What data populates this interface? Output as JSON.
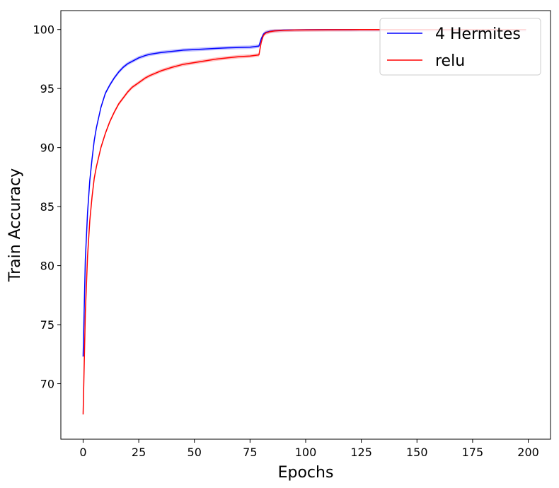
{
  "chart_data": {
    "type": "line",
    "xlabel": "Epochs",
    "ylabel": "Train Accuracy",
    "xlim": [
      -10,
      210
    ],
    "ylim": [
      65.3,
      101.6
    ],
    "xticks": [
      0,
      25,
      50,
      75,
      100,
      125,
      150,
      175,
      200
    ],
    "yticks": [
      70,
      75,
      80,
      85,
      90,
      95,
      100
    ],
    "xtick_labels": [
      "0",
      "25",
      "50",
      "75",
      "100",
      "125",
      "150",
      "175",
      "200"
    ],
    "ytick_labels": [
      "70",
      "75",
      "80",
      "85",
      "90",
      "95",
      "100"
    ],
    "legend_position": "top-right",
    "grid": false,
    "series": [
      {
        "name": "4 Hermites",
        "color": "#0000ff",
        "band_color": "#9999ff",
        "x": [
          0,
          1,
          2,
          3,
          4,
          5,
          6,
          8,
          10,
          12,
          14,
          16,
          18,
          20,
          22,
          25,
          28,
          30,
          35,
          40,
          45,
          50,
          55,
          60,
          65,
          70,
          75,
          79,
          80,
          81,
          82,
          84,
          86,
          90,
          95,
          100,
          110,
          120,
          130,
          140,
          150,
          160,
          170,
          180,
          190,
          199
        ],
        "values": [
          72.3,
          80.5,
          84.5,
          87.2,
          89.0,
          90.6,
          91.7,
          93.4,
          94.6,
          95.3,
          95.9,
          96.4,
          96.8,
          97.1,
          97.3,
          97.6,
          97.8,
          97.9,
          98.05,
          98.15,
          98.25,
          98.3,
          98.35,
          98.4,
          98.45,
          98.48,
          98.5,
          98.6,
          99.2,
          99.6,
          99.75,
          99.85,
          99.9,
          99.95,
          99.97,
          99.98,
          99.99,
          99.99,
          100.0,
          100.0,
          100.0,
          100.0,
          100.0,
          100.0,
          100.0,
          100.0
        ]
      },
      {
        "name": "relu",
        "color": "#ff0000",
        "band_color": "#ff9999",
        "x": [
          0,
          1,
          2,
          3,
          4,
          5,
          6,
          8,
          10,
          12,
          14,
          16,
          18,
          20,
          22,
          25,
          28,
          30,
          35,
          40,
          45,
          50,
          55,
          60,
          65,
          70,
          75,
          79,
          80,
          81,
          82,
          84,
          86,
          90,
          95,
          100,
          110,
          120,
          130,
          140,
          150,
          160,
          170,
          180,
          190,
          199
        ],
        "values": [
          67.4,
          76.0,
          80.8,
          83.8,
          85.8,
          87.4,
          88.4,
          90.0,
          91.2,
          92.2,
          93.0,
          93.7,
          94.2,
          94.7,
          95.1,
          95.5,
          95.9,
          96.1,
          96.5,
          96.8,
          97.05,
          97.2,
          97.35,
          97.5,
          97.6,
          97.7,
          97.75,
          97.85,
          98.9,
          99.5,
          99.7,
          99.82,
          99.88,
          99.93,
          99.96,
          99.97,
          99.98,
          99.99,
          100.0,
          100.0,
          100.0,
          100.0,
          100.0,
          100.0,
          100.0,
          100.0
        ]
      }
    ]
  }
}
